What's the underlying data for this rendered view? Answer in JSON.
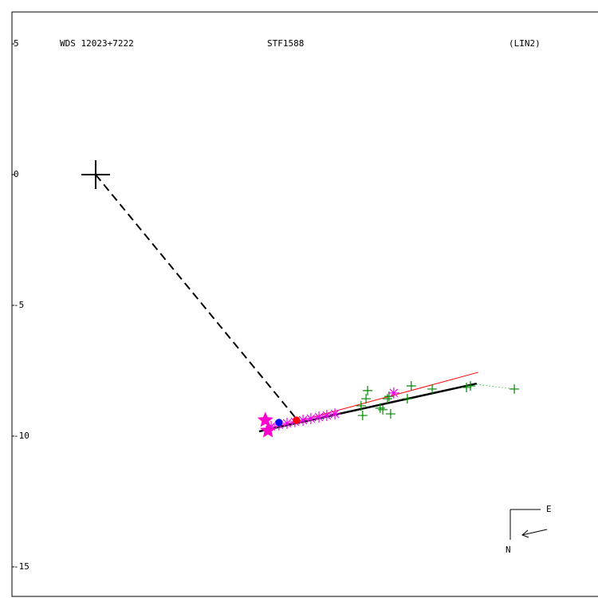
{
  "chart_data": {
    "type": "scatter",
    "label_left": "WDS 12023+7222",
    "title": "STF1588",
    "label_right": "(LIN2)",
    "xlim": [
      -3.2,
      19.21
    ],
    "ylim": [
      -16.13,
      6.22
    ],
    "yticks": [
      5,
      0,
      -5,
      -10,
      -15
    ],
    "compass": {
      "east": "E",
      "north": "N"
    },
    "primary": {
      "x": 0,
      "y": 0,
      "color": "#000000"
    },
    "lines": [
      {
        "style": "dashed",
        "color": "#000000",
        "x": [
          0,
          7.62
        ],
        "y": [
          0,
          -9.27
        ]
      },
      {
        "style": "thin",
        "color": "#ff0000",
        "x": [
          6.4,
          14.63
        ],
        "y": [
          -9.79,
          -7.56
        ]
      },
      {
        "style": "thick",
        "color": "#000000",
        "x": [
          6.25,
          14.57
        ],
        "y": [
          -9.82,
          -7.99
        ]
      },
      {
        "style": "dotted",
        "color": "#00aa00",
        "x": [
          14.57,
          16.01
        ],
        "y": [
          -8.02,
          -8.2
        ]
      }
    ],
    "series": [
      {
        "marker": "plus",
        "color": "#008800",
        "x": [
          10.21,
          10.15,
          10.4,
          10.34,
          10.88,
          10.98,
          11.16,
          11.22,
          11.28,
          11.92,
          12.07,
          12.87,
          14.18,
          14.33,
          16.01
        ],
        "y": [
          -9.21,
          -8.84,
          -8.26,
          -8.57,
          -8.93,
          -8.99,
          -8.57,
          -8.48,
          -9.15,
          -8.57,
          -8.08,
          -8.2,
          -8.14,
          -8.08,
          -8.2
        ]
      },
      {
        "marker": "asterisk",
        "color": "#ee00ee",
        "x": [
          6.71,
          7.01,
          7.32,
          7.62,
          7.93,
          8.23,
          8.54,
          8.84,
          9.15,
          11.4
        ],
        "y": [
          -9.63,
          -9.57,
          -9.51,
          -9.45,
          -9.39,
          -9.33,
          -9.27,
          -9.21,
          -9.15,
          -8.35
        ]
      },
      {
        "marker": "star",
        "color": "#ff00cc",
        "x": [
          6.49,
          6.59
        ],
        "y": [
          -9.39,
          -9.79
        ]
      },
      {
        "marker": "dot",
        "color": "#0000ff",
        "x": [
          7.01
        ],
        "y": [
          -9.48
        ]
      },
      {
        "marker": "dot",
        "color": "#ff0000",
        "x": [
          7.68
        ],
        "y": [
          -9.39
        ]
      }
    ]
  }
}
